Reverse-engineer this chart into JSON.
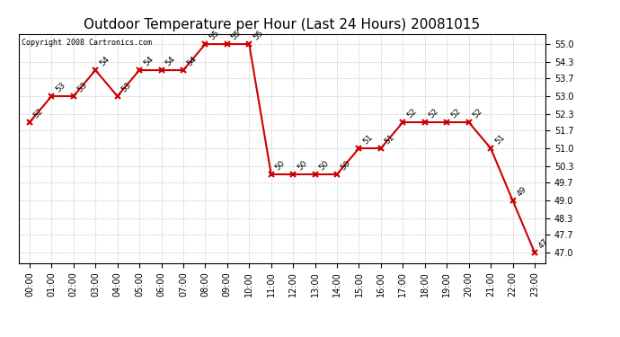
{
  "title": "Outdoor Temperature per Hour (Last 24 Hours) 20081015",
  "copyright_text": "Copyright 2008 Cartronics.com",
  "hours": [
    "00:00",
    "01:00",
    "02:00",
    "03:00",
    "04:00",
    "05:00",
    "06:00",
    "07:00",
    "08:00",
    "09:00",
    "10:00",
    "11:00",
    "12:00",
    "13:00",
    "14:00",
    "15:00",
    "16:00",
    "17:00",
    "18:00",
    "19:00",
    "20:00",
    "21:00",
    "22:00",
    "23:00"
  ],
  "temperatures": [
    52,
    53,
    53,
    54,
    53,
    54,
    54,
    54,
    55,
    55,
    55,
    50,
    50,
    50,
    50,
    51,
    51,
    52,
    52,
    52,
    52,
    51,
    49,
    47
  ],
  "line_color": "#cc0000",
  "marker_color": "#cc0000",
  "background_color": "#ffffff",
  "grid_color": "#cccccc",
  "yticks": [
    47.0,
    47.7,
    48.3,
    49.0,
    49.7,
    50.3,
    51.0,
    51.7,
    52.3,
    53.0,
    53.7,
    54.3,
    55.0
  ],
  "ylim": [
    46.6,
    55.4
  ],
  "title_fontsize": 11,
  "label_fontsize": 7,
  "annotation_fontsize": 6.5,
  "copyright_fontsize": 6
}
